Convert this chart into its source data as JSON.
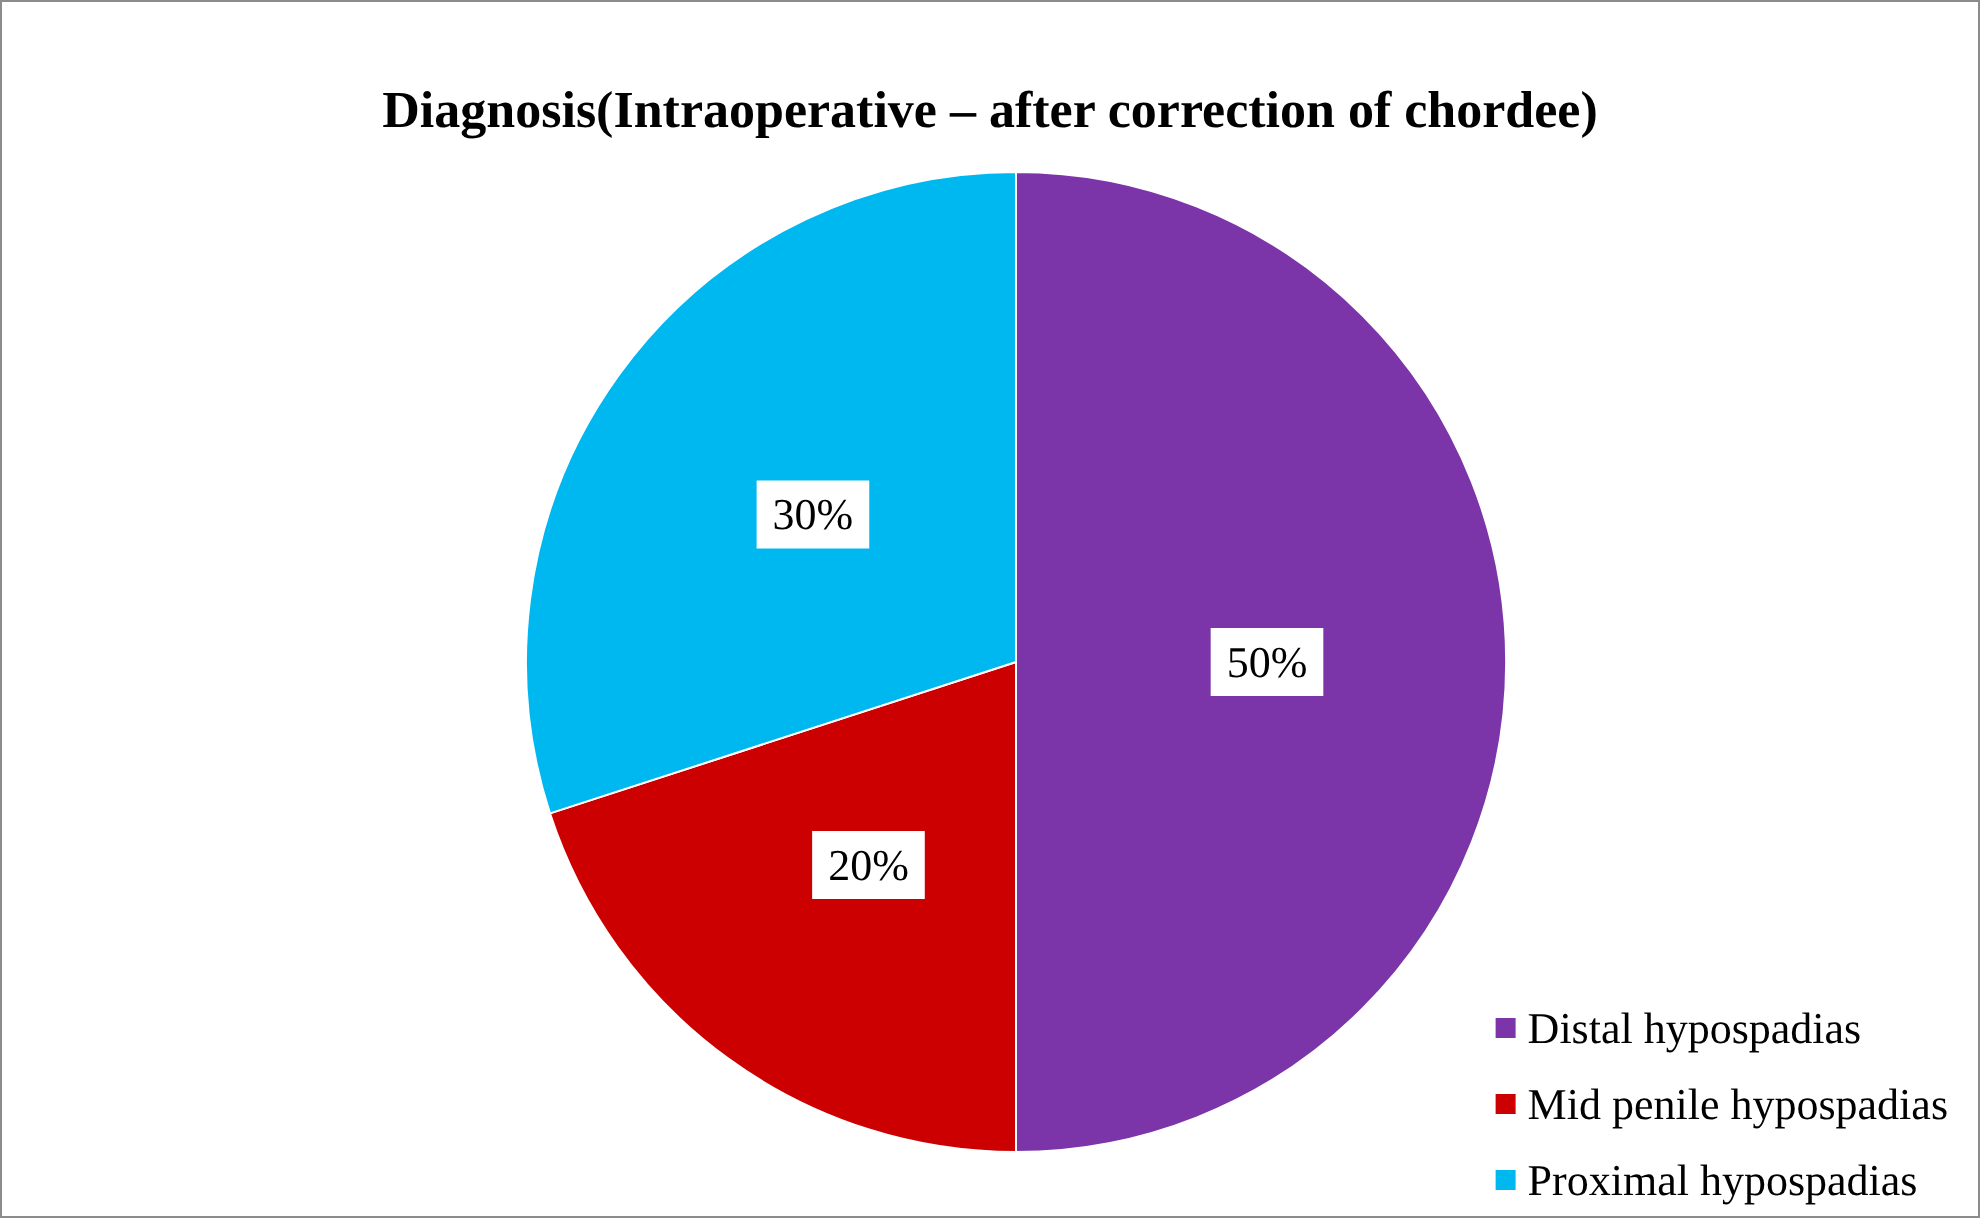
{
  "chart_data": {
    "type": "pie",
    "title": "Diagnosis(Intraoperative – after correction of chordee)",
    "categories": [
      "Distal hypospadias",
      "Mid penile hypospadias",
      "Proximal hypospadias"
    ],
    "values": [
      50,
      20,
      30
    ],
    "colors": [
      "#7b35a8",
      "#cc0000",
      "#00b8f0"
    ],
    "value_labels": [
      "50%",
      "20%",
      "30%"
    ],
    "legend": "bottom right"
  }
}
